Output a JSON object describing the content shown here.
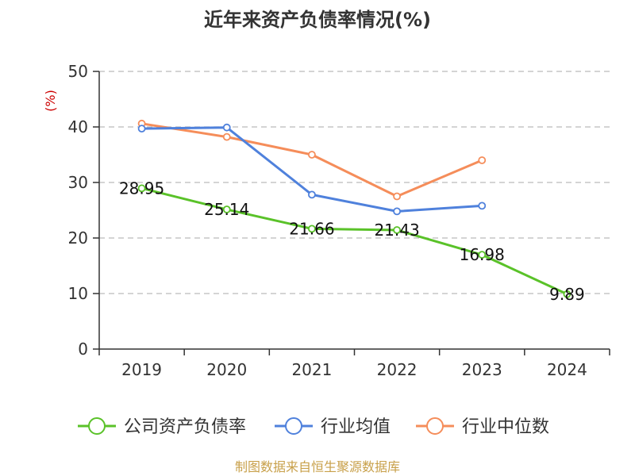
{
  "chart_data": {
    "type": "line",
    "title": "近年来资产负债率情况(%)",
    "ylabel": "(%)",
    "xlabel": "",
    "categories": [
      "2019",
      "2020",
      "2021",
      "2022",
      "2023",
      "2024"
    ],
    "ylim": [
      0,
      50
    ],
    "yticks": [
      0,
      10,
      20,
      30,
      40,
      50
    ],
    "grid": true,
    "legend_position": "bottom",
    "series": [
      {
        "name": "公司资产负债率",
        "color": "#5ac229",
        "values": [
          28.95,
          25.14,
          21.66,
          21.43,
          16.98,
          9.89
        ],
        "labels": [
          "28.95",
          "25.14",
          "21.66",
          "21.43",
          "16.98",
          "9.89"
        ]
      },
      {
        "name": "行业均值",
        "color": "#4f81dc",
        "values": [
          39.7,
          39.9,
          27.8,
          24.8,
          25.8,
          null
        ]
      },
      {
        "name": "行业中位数",
        "color": "#f58d5a",
        "values": [
          40.6,
          38.2,
          35.0,
          27.5,
          34.0,
          null
        ]
      }
    ]
  },
  "colors": {
    "axis": "#333333",
    "grid": "#bbbbbb",
    "ylabel": "#cc0000",
    "source": "#c8a04a"
  },
  "source": "制图数据来自恒生聚源数据库"
}
